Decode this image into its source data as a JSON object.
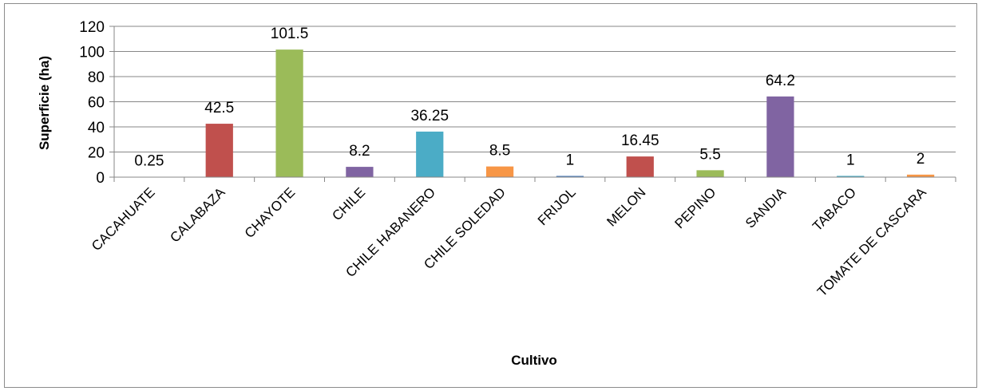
{
  "chart_data": {
    "type": "bar",
    "title": "",
    "xlabel": "Cultivo",
    "ylabel": "Superficie (ha)",
    "ylim": [
      0,
      120
    ],
    "yticks": [
      0,
      20,
      40,
      60,
      80,
      100,
      120
    ],
    "grid": true,
    "legend": "none",
    "categories": [
      "CACAHUATE",
      "CALABAZA",
      "CHAYOTE",
      "CHILE",
      "CHILE HABANERO",
      "CHILE SOLEDAD",
      "FRIJOL",
      "MELON",
      "PEPINO",
      "SANDIA",
      "TABACO",
      "TOMATE DE CASCARA"
    ],
    "values": [
      0.25,
      42.5,
      101.5,
      8.2,
      36.25,
      8.5,
      1,
      16.45,
      5.5,
      64.2,
      1,
      2
    ],
    "data_labels": [
      "0.25",
      "42.5",
      "101.5",
      "8.2",
      "36.25",
      "8.5",
      "1",
      "16.45",
      "5.5",
      "64.2",
      "1",
      "2"
    ],
    "colors": [
      "#4f81bd",
      "#c0504d",
      "#9bbb59",
      "#8064a2",
      "#4bacc6",
      "#f79646",
      "#4f81bd",
      "#c0504d",
      "#9bbb59",
      "#8064a2",
      "#4bacc6",
      "#f79646"
    ]
  }
}
